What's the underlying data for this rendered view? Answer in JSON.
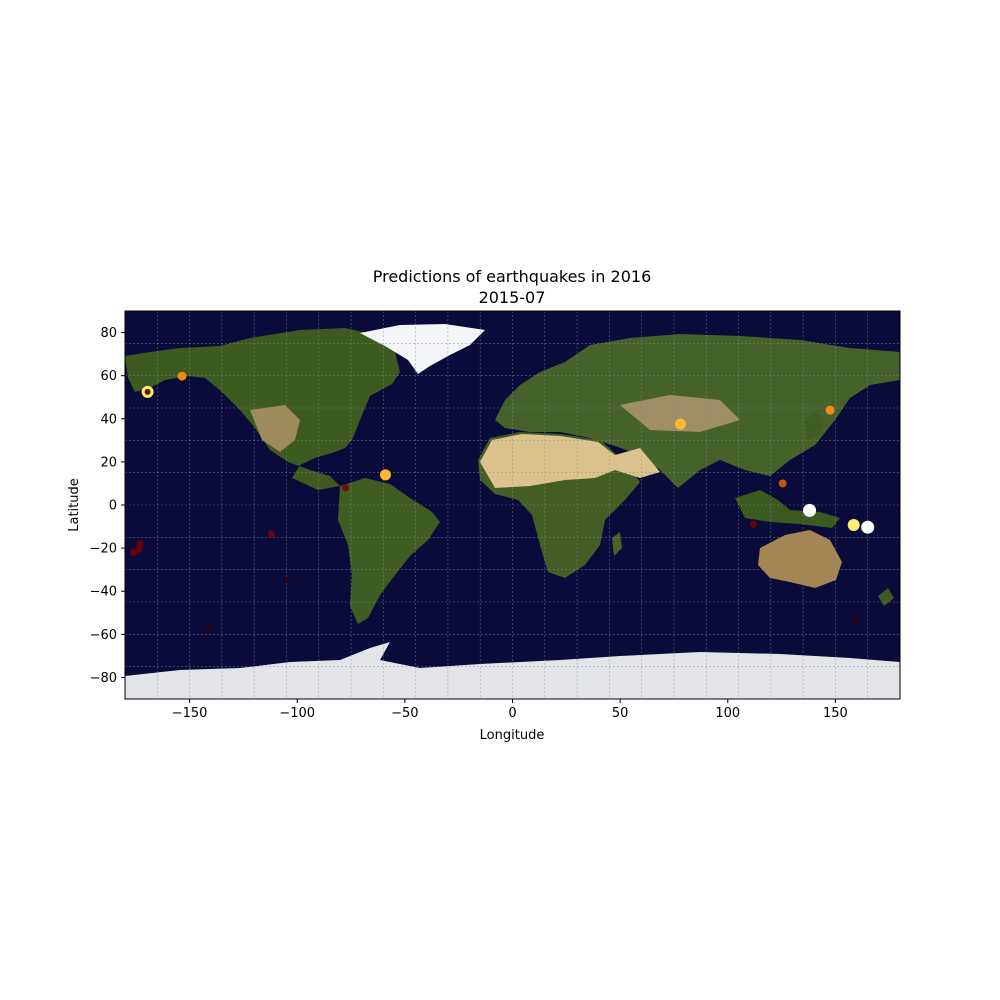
{
  "title": "Predictions of earthquakes in 2016",
  "subtitle": "2015-07",
  "xlabel": "Longitude",
  "ylabel": "Latitude",
  "xlim": [
    -180,
    180
  ],
  "ylim": [
    -90,
    90
  ],
  "xticks": [
    -150,
    -100,
    -50,
    0,
    50,
    100,
    150
  ],
  "yticks": [
    -80,
    -60,
    -40,
    -20,
    0,
    20,
    40,
    60,
    80
  ],
  "grid": true,
  "colors": {
    "ocean": "#0b0b3b",
    "land": "#3f5a1e",
    "desert": "#c8ad78",
    "ice": "#e8eaee",
    "grid": "#8a8aa0"
  },
  "chart_data": {
    "type": "scatter",
    "x_field": "longitude",
    "y_field": "latitude",
    "points": [
      {
        "lon": -169.5,
        "lat": 52.5,
        "level": 5
      },
      {
        "lon": -153.5,
        "lat": 59.8,
        "level": 3
      },
      {
        "lon": -59,
        "lat": 14,
        "level": 4
      },
      {
        "lon": 78,
        "lat": 37.5,
        "level": 4
      },
      {
        "lon": 147.5,
        "lat": 44,
        "level": 3
      },
      {
        "lon": 125.5,
        "lat": 10,
        "level": 2
      },
      {
        "lon": 138,
        "lat": -2.5,
        "level": 6
      },
      {
        "lon": 158.5,
        "lat": -9.3,
        "level": 5
      },
      {
        "lon": 165,
        "lat": -10.3,
        "level": 6
      },
      {
        "lon": 112,
        "lat": -9,
        "level": 1
      },
      {
        "lon": -77.5,
        "lat": 8,
        "level": 1
      },
      {
        "lon": -112,
        "lat": -13.5,
        "level": 1
      },
      {
        "lon": -173,
        "lat": -18,
        "level": 1
      },
      {
        "lon": -173.5,
        "lat": -20.5,
        "level": 1
      },
      {
        "lon": -176,
        "lat": -22,
        "level": 1
      },
      {
        "lon": -105,
        "lat": -35,
        "level": 0
      },
      {
        "lon": -141,
        "lat": -57,
        "level": 0
      },
      {
        "lon": 159,
        "lat": -53,
        "level": 0
      }
    ]
  }
}
